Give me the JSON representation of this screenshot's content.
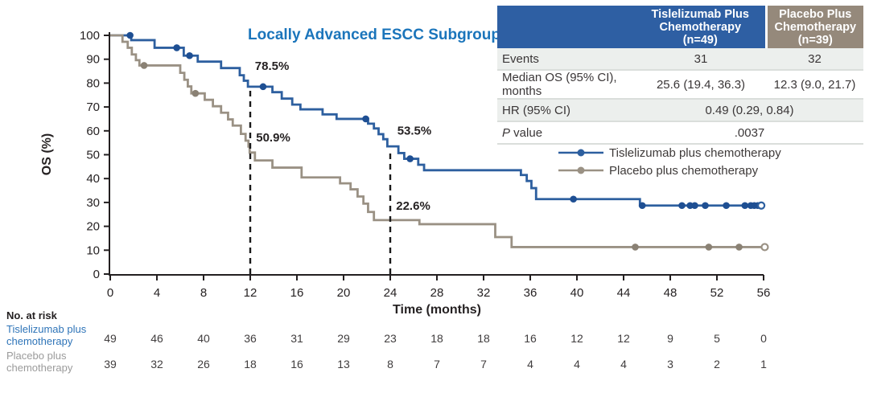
{
  "chart_data": {
    "type": "line",
    "subtype": "kaplan-meier-step",
    "title": "Locally Advanced ESCC Subgroup",
    "title_color": "#1B75BB",
    "xlabel": "Time (months)",
    "ylabel": "OS (%)",
    "xlim": [
      0,
      56
    ],
    "ylim": [
      0,
      100
    ],
    "xticks": [
      0,
      4,
      8,
      12,
      16,
      20,
      24,
      28,
      32,
      36,
      40,
      44,
      48,
      52,
      56
    ],
    "yticks": [
      0,
      10,
      20,
      30,
      40,
      50,
      60,
      70,
      80,
      90,
      100
    ],
    "grid": false,
    "series": [
      {
        "name": "Tislelizumab plus chemotherapy",
        "color": "#2D5F9F",
        "marker_color": "#1E4F93",
        "annotation_color": "#2C5F9C",
        "steps": [
          [
            0,
            100
          ],
          [
            1.8,
            98
          ],
          [
            3.8,
            94.8
          ],
          [
            6.3,
            91.5
          ],
          [
            7.5,
            89
          ],
          [
            9.5,
            86.3
          ],
          [
            11.1,
            83.3
          ],
          [
            11.45,
            81
          ],
          [
            11.8,
            78.5
          ],
          [
            13.9,
            76.2
          ],
          [
            14.7,
            73.5
          ],
          [
            15.6,
            71
          ],
          [
            16.3,
            69
          ],
          [
            18.2,
            66.9
          ],
          [
            19.4,
            65
          ],
          [
            22.1,
            63
          ],
          [
            22.6,
            61
          ],
          [
            23,
            58.6
          ],
          [
            23.4,
            56.5
          ],
          [
            23.75,
            53.5
          ],
          [
            24.7,
            50.7
          ],
          [
            25.2,
            48.3
          ],
          [
            26.4,
            45.8
          ],
          [
            26.9,
            43.5
          ],
          [
            35.2,
            41.5
          ],
          [
            35.7,
            39
          ],
          [
            36.1,
            36
          ],
          [
            36.5,
            31.4
          ],
          [
            45.4,
            28.7
          ]
        ],
        "end_t": 55.8,
        "end_open_circle": true,
        "censor_times": [
          1.7,
          5.7,
          6.8,
          13.1,
          21.9,
          25.7,
          39.7,
          45.6,
          49.0,
          49.7,
          50.1,
          51.0,
          52.8,
          54.4,
          54.9,
          55.2,
          55.5
        ]
      },
      {
        "name": "Placebo plus chemotherapy",
        "color": "#9A9184",
        "marker_color": "#8A8174",
        "annotation_color": "#8C8376",
        "steps": [
          [
            0,
            100
          ],
          [
            1.05,
            97.3
          ],
          [
            1.5,
            94.8
          ],
          [
            1.85,
            92
          ],
          [
            2.2,
            89.6
          ],
          [
            2.5,
            87.4
          ],
          [
            6.0,
            84.3
          ],
          [
            6.35,
            81.4
          ],
          [
            6.65,
            78.6
          ],
          [
            6.95,
            75.7
          ],
          [
            8.1,
            73
          ],
          [
            8.8,
            70.3
          ],
          [
            9.5,
            67.6
          ],
          [
            10.1,
            64.8
          ],
          [
            10.5,
            62.2
          ],
          [
            11.2,
            58.7
          ],
          [
            11.6,
            55.9
          ],
          [
            11.85,
            53.4
          ],
          [
            11.95,
            50.9
          ],
          [
            12.4,
            47.6
          ],
          [
            13.9,
            44.6
          ],
          [
            16.4,
            40.5
          ],
          [
            19.7,
            38
          ],
          [
            20.6,
            35.5
          ],
          [
            21.2,
            32.5
          ],
          [
            21.7,
            29.5
          ],
          [
            22.1,
            26
          ],
          [
            22.6,
            22.6
          ],
          [
            26.5,
            20.9
          ],
          [
            33,
            15.5
          ],
          [
            34.4,
            11.3
          ]
        ],
        "end_t": 56.1,
        "end_open_circle": true,
        "censor_times": [
          2.9,
          7.3,
          45.0,
          51.3,
          53.9
        ]
      }
    ],
    "dashed_lines": [
      {
        "month": 12,
        "top_pct": 78.5
      },
      {
        "month": 24,
        "top_pct": 53.5
      }
    ],
    "annotations": [
      {
        "text": "78.5%",
        "series": 0,
        "month": 12.4,
        "pct": 85.5
      },
      {
        "text": "50.9%",
        "series": 1,
        "month": 12.5,
        "pct": 55.5
      },
      {
        "text": "53.5%",
        "series": 0,
        "month": 24.6,
        "pct": 58.5
      },
      {
        "text": "22.6%",
        "series": 1,
        "month": 24.5,
        "pct": 27
      }
    ],
    "risk_table": {
      "header": "No. at risk",
      "times": [
        0,
        4,
        8,
        12,
        16,
        20,
        24,
        28,
        32,
        36,
        40,
        44,
        48,
        52,
        56
      ],
      "rows": [
        {
          "label": "Tislelizumab plus chemotherapy",
          "color": "#2E74B8",
          "values": [
            49,
            46,
            40,
            36,
            31,
            29,
            23,
            18,
            18,
            16,
            12,
            12,
            9,
            5,
            0
          ]
        },
        {
          "label": "Placebo plus chemotherapy",
          "color": "#9B9B9B",
          "values": [
            39,
            32,
            26,
            18,
            16,
            13,
            8,
            7,
            7,
            4,
            4,
            4,
            3,
            2,
            1
          ]
        }
      ]
    }
  },
  "summary_table": {
    "columns": [
      {
        "title": "Tislelizumab Plus Chemotherapy",
        "n": "(n=49)",
        "bg": "#2E5FA3"
      },
      {
        "title": "Placebo Plus Chemotherapy",
        "n": "(n=39)",
        "bg": "#95897B"
      }
    ],
    "rows": [
      {
        "label": "Events",
        "values": [
          "31",
          "32"
        ]
      },
      {
        "label": "Median OS (95% CI), months",
        "values": [
          "25.6 (19.4, 36.3)",
          "12.3 (9.0, 21.7)"
        ]
      },
      {
        "label": "HR (95% CI)",
        "values": [
          "0.49 (0.29, 0.84)"
        ],
        "span": true
      },
      {
        "label_italic": "P",
        "label_rest": " value",
        "values": [
          ".0037"
        ],
        "span": true
      }
    ]
  },
  "legend": {
    "items": [
      {
        "label": "Tislelizumab plus chemotherapy",
        "color": "#2D5F9F"
      },
      {
        "label": "Placebo plus chemotherapy",
        "color": "#9A9184"
      }
    ]
  }
}
